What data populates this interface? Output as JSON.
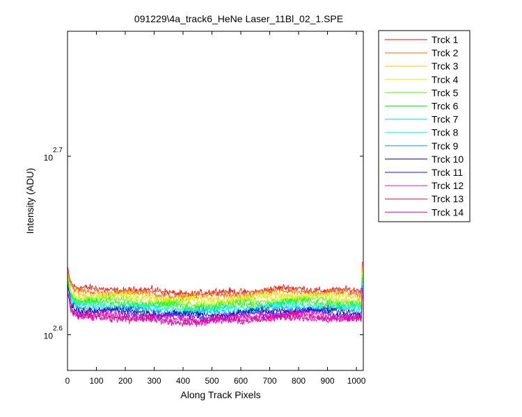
{
  "chart_data": {
    "type": "line",
    "title": "091229\\4a_track6_HeNe Laser_11Bl_02_1.SPE",
    "xlabel": "Along Track Pixels",
    "ylabel": "Intensity (ADU)",
    "xlim": [
      0,
      1024
    ],
    "ylim_log10": [
      2.58,
      2.77
    ],
    "y_scale": "log",
    "x_ticks": [
      0,
      100,
      200,
      300,
      400,
      500,
      600,
      700,
      800,
      900,
      1000
    ],
    "y_ticks": [
      {
        "base": "10",
        "exponent": "2.6",
        "log10": 2.6
      },
      {
        "base": "10",
        "exponent": "2.7",
        "log10": 2.7
      }
    ],
    "grid": false,
    "legend_position": "outside-right",
    "series": [
      {
        "name": "Trck 1",
        "color": "#ff0000",
        "base_log10": 2.6245,
        "noise": 0.003,
        "start_log10": 2.637
      },
      {
        "name": "Trck 2",
        "color": "#ff6600",
        "base_log10": 2.623,
        "noise": 0.003,
        "start_log10": 2.636
      },
      {
        "name": "Trck 3",
        "color": "#ffcc00",
        "base_log10": 2.6215,
        "noise": 0.003,
        "start_log10": 2.635
      },
      {
        "name": "Trck 4",
        "color": "#ccff00",
        "base_log10": 2.62,
        "noise": 0.003,
        "start_log10": 2.634
      },
      {
        "name": "Trck 5",
        "color": "#66ff00",
        "base_log10": 2.6185,
        "noise": 0.003,
        "start_log10": 2.633
      },
      {
        "name": "Trck 6",
        "color": "#00ff00",
        "base_log10": 2.617,
        "noise": 0.003,
        "start_log10": 2.632
      },
      {
        "name": "Trck 7",
        "color": "#00ffa0",
        "base_log10": 2.6155,
        "noise": 0.003,
        "start_log10": 2.631
      },
      {
        "name": "Trck 8",
        "color": "#00ffee",
        "base_log10": 2.6145,
        "noise": 0.003,
        "start_log10": 2.63
      },
      {
        "name": "Trck 9",
        "color": "#0099ff",
        "base_log10": 2.6135,
        "noise": 0.003,
        "start_log10": 2.629
      },
      {
        "name": "Trck 10",
        "color": "#0000a0",
        "base_log10": 2.6125,
        "noise": 0.003,
        "start_log10": 2.628
      },
      {
        "name": "Trck 11",
        "color": "#3300ff",
        "base_log10": 2.6115,
        "noise": 0.003,
        "start_log10": 2.627
      },
      {
        "name": "Trck 12",
        "color": "#ff00cc",
        "base_log10": 2.61,
        "noise": 0.0035,
        "start_log10": 2.626
      },
      {
        "name": "Trck 13",
        "color": "#ff0066",
        "base_log10": 2.609,
        "noise": 0.0035,
        "start_log10": 2.625
      },
      {
        "name": "Trck 14",
        "color": "#cc00cc",
        "base_log10": 2.6085,
        "noise": 0.0035,
        "start_log10": 2.624
      }
    ]
  }
}
